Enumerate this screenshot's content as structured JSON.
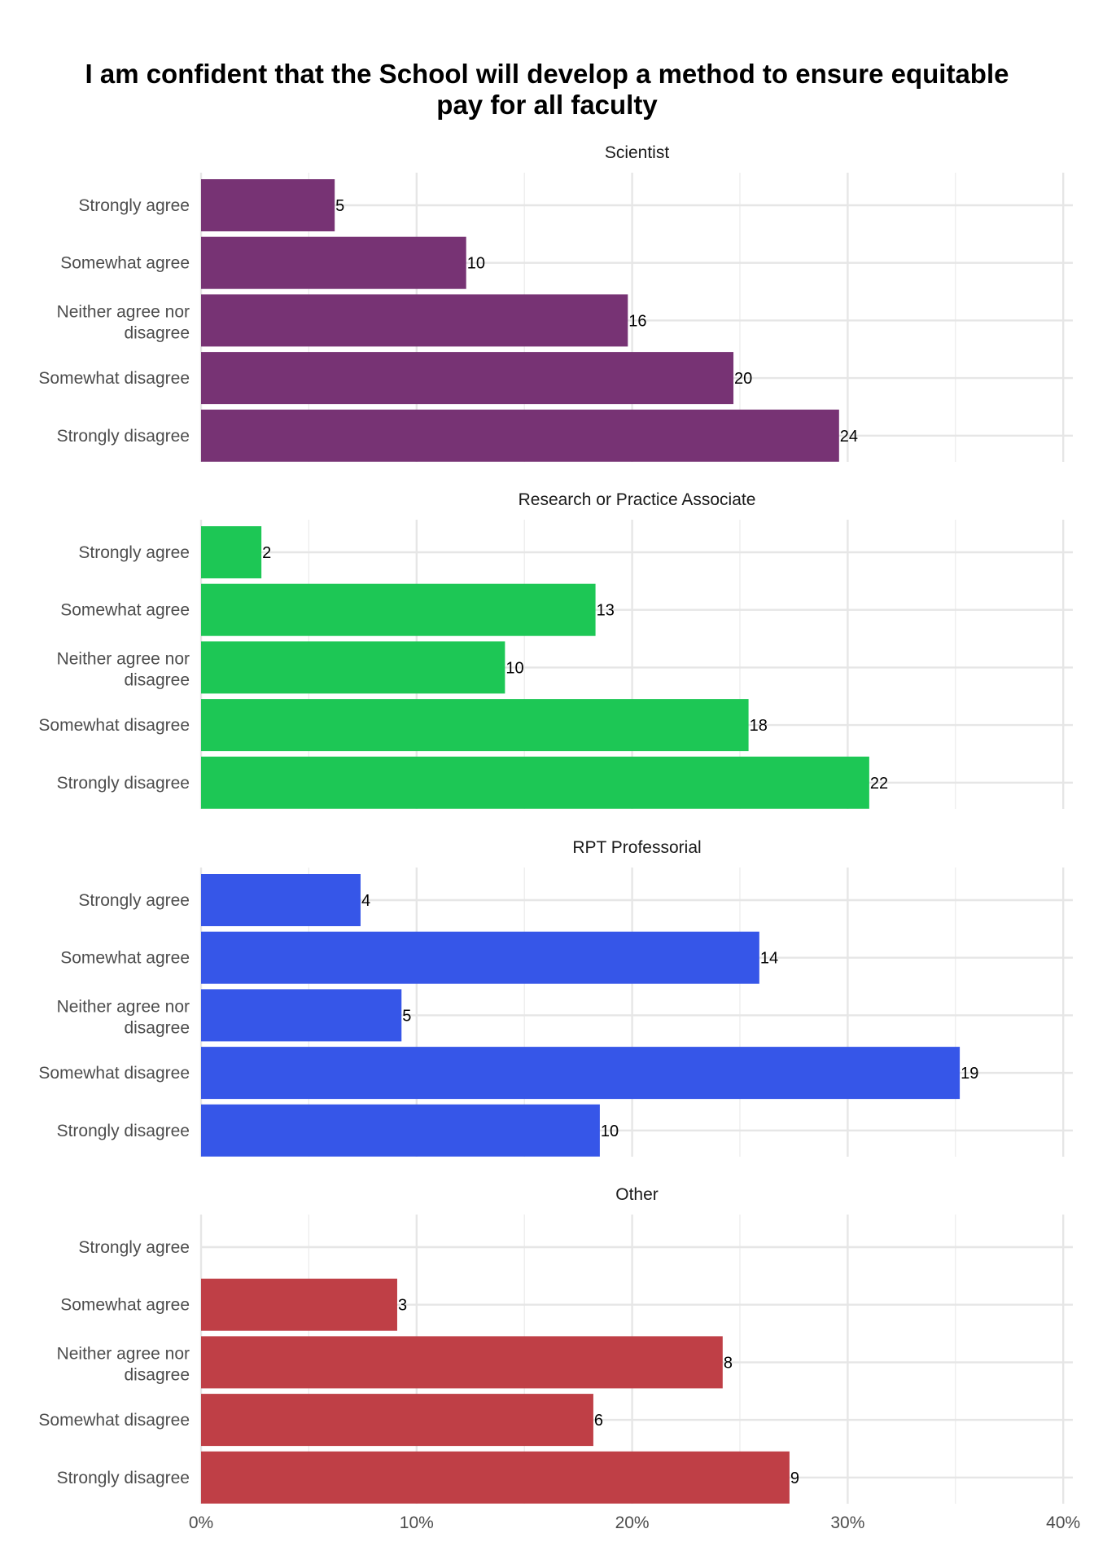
{
  "chart_data": {
    "type": "bar",
    "orientation": "horizontal",
    "title_lines": [
      "I am confident that the School will develop a method to ensure equitable",
      "pay for all faculty"
    ],
    "categories": [
      "Strongly agree",
      "Somewhat agree",
      "Neither agree nor disagree",
      "Somewhat disagree",
      "Strongly disagree"
    ],
    "category_lines": [
      [
        "Strongly agree"
      ],
      [
        "Somewhat agree"
      ],
      [
        "Neither agree nor",
        "disagree"
      ],
      [
        "Somewhat disagree"
      ],
      [
        "Strongly disagree"
      ]
    ],
    "x_ticks": [
      "0%",
      "10%",
      "20%",
      "30%",
      "40%"
    ],
    "xlim": [
      0,
      40
    ],
    "grid": true,
    "value_unit": "percent",
    "facets": [
      {
        "name": "Scientist",
        "color": "#773374",
        "counts": [
          5,
          10,
          16,
          20,
          24
        ],
        "percents": [
          6.2,
          12.3,
          19.8,
          24.7,
          29.6
        ]
      },
      {
        "name": "Research or Practice Associate",
        "color": "#1DC755",
        "counts": [
          2,
          13,
          10,
          18,
          22
        ],
        "percents": [
          2.8,
          18.3,
          14.1,
          25.4,
          31.0
        ]
      },
      {
        "name": "RPT Professorial",
        "color": "#3656E8",
        "counts": [
          4,
          14,
          5,
          19,
          10
        ],
        "percents": [
          7.4,
          25.9,
          9.3,
          35.2,
          18.5
        ]
      },
      {
        "name": "Other",
        "color": "#BF3F46",
        "counts": [
          null,
          3,
          8,
          6,
          9
        ],
        "percents": [
          0,
          9.1,
          24.2,
          18.2,
          27.3
        ]
      }
    ]
  }
}
